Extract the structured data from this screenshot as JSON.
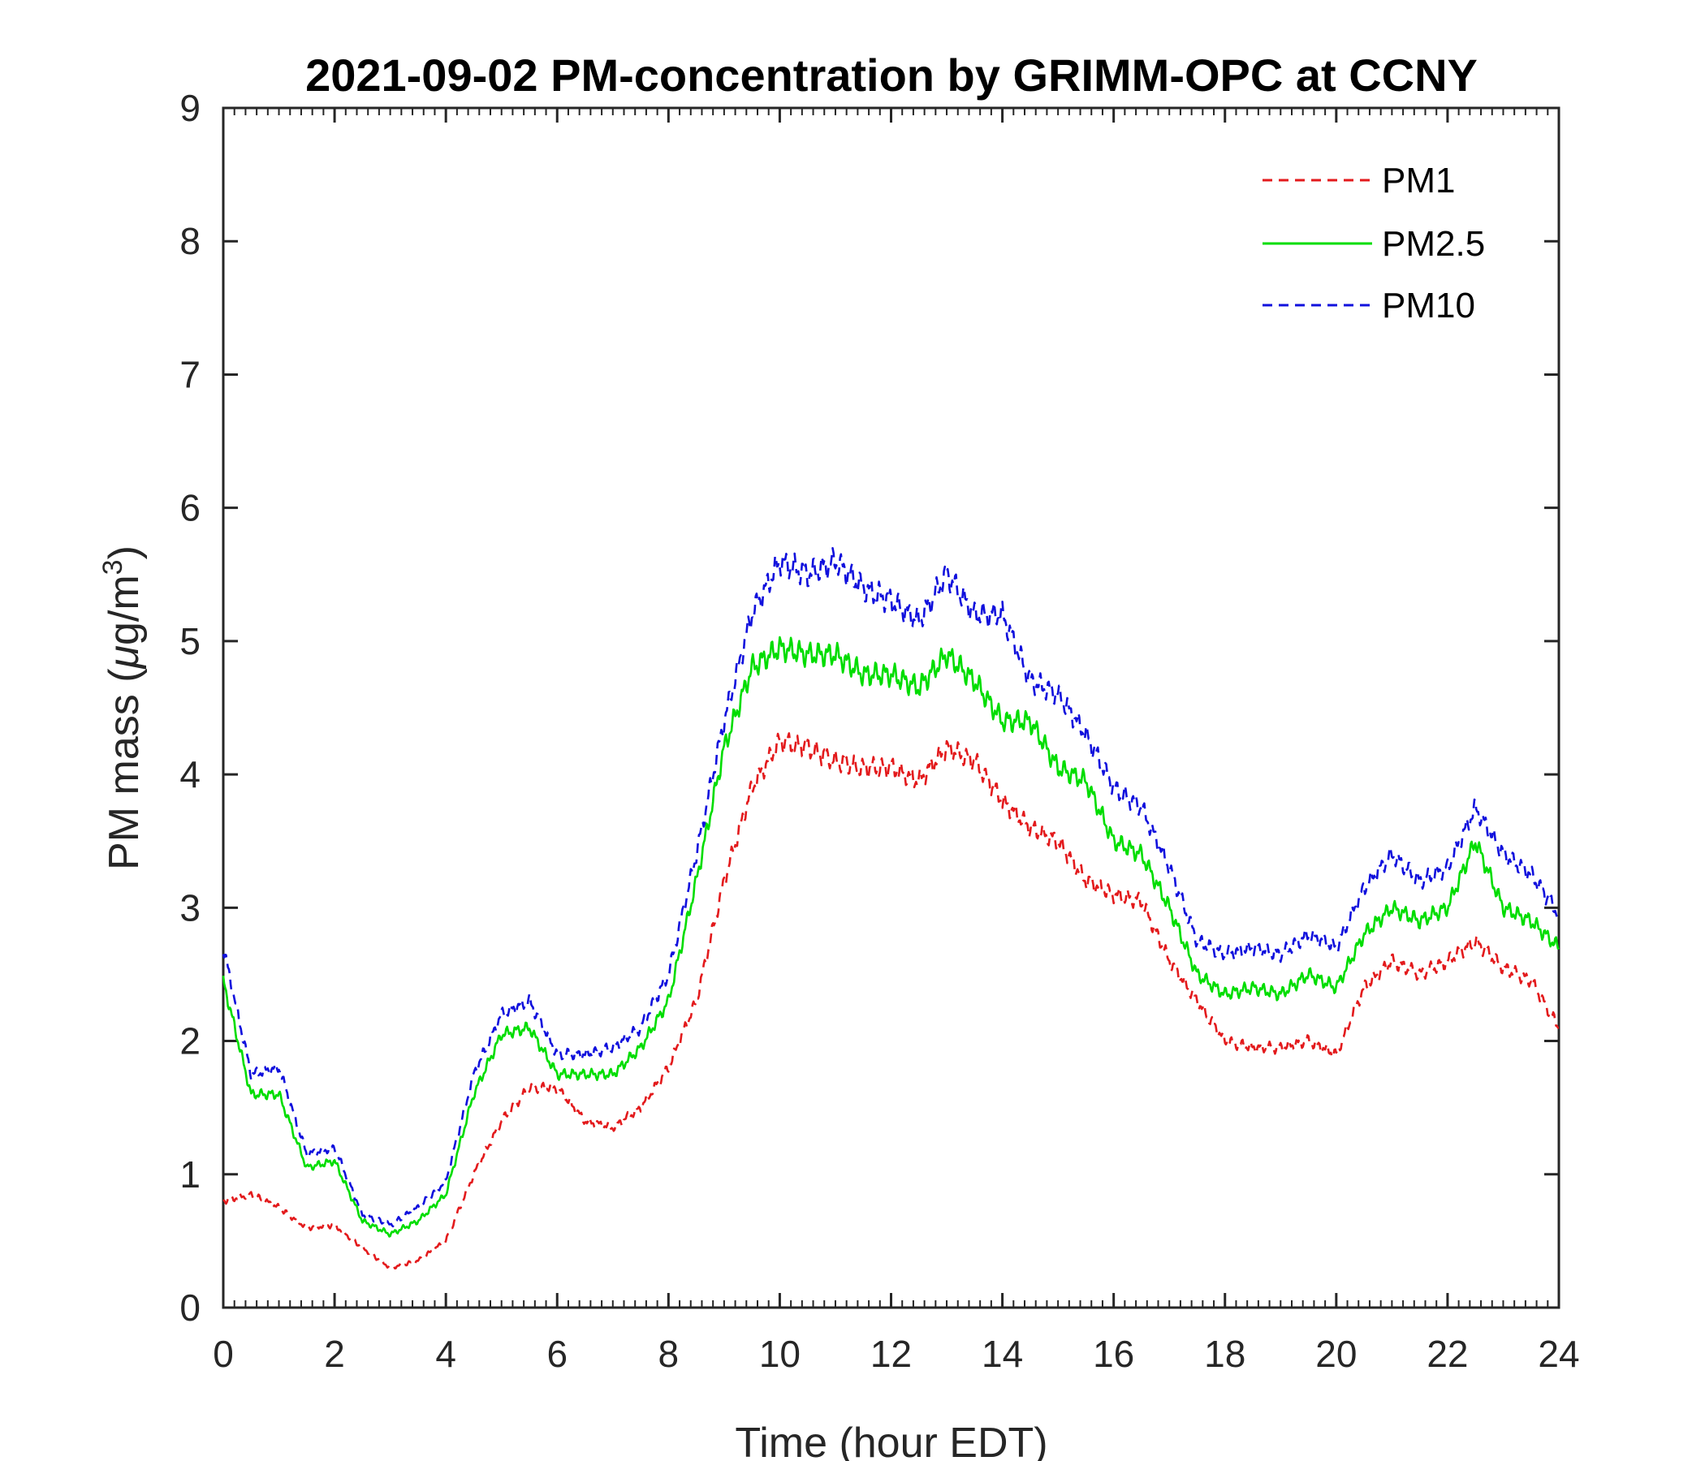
{
  "chart_data": {
    "type": "line",
    "title": "2021-09-02 PM-concentration by GRIMM-OPC at CCNY",
    "xlabel": "Time (hour EDT)",
    "ylabel_main": "PM mass (",
    "ylabel_mu": "μ",
    "ylabel_unit": "g/m",
    "ylabel_sup": "3",
    "ylabel_close": ")",
    "xlim": [
      0,
      24
    ],
    "ylim": [
      0,
      9
    ],
    "x_ticks": [
      "0",
      "2",
      "4",
      "6",
      "8",
      "10",
      "12",
      "14",
      "16",
      "18",
      "20",
      "22",
      "24"
    ],
    "y_ticks": [
      "0",
      "1",
      "2",
      "3",
      "4",
      "5",
      "6",
      "7",
      "8",
      "9"
    ],
    "grid": false,
    "legend_position": "top-right",
    "x": [
      0,
      0.5,
      1,
      1.5,
      2,
      2.5,
      3,
      3.5,
      4,
      4.5,
      5,
      5.5,
      6,
      6.5,
      7,
      7.5,
      8,
      8.5,
      9,
      9.5,
      10,
      10.5,
      11,
      11.5,
      12,
      12.5,
      13,
      13.5,
      14,
      14.5,
      15,
      15.5,
      16,
      16.5,
      17,
      17.5,
      18,
      18.5,
      19,
      19.5,
      20,
      20.5,
      21,
      21.5,
      22,
      22.5,
      23,
      23.5,
      24
    ],
    "series": [
      {
        "name": "PM1",
        "color": "#e31a1c",
        "dash": "dashed",
        "values": [
          0.8,
          0.85,
          0.75,
          0.6,
          0.62,
          0.45,
          0.3,
          0.35,
          0.5,
          1.0,
          1.4,
          1.65,
          1.65,
          1.4,
          1.35,
          1.5,
          1.8,
          2.3,
          3.2,
          3.9,
          4.25,
          4.2,
          4.1,
          4.05,
          4.05,
          3.95,
          4.2,
          4.1,
          3.8,
          3.6,
          3.5,
          3.2,
          3.1,
          3.05,
          2.6,
          2.3,
          2.0,
          1.95,
          1.95,
          2.0,
          1.9,
          2.4,
          2.6,
          2.5,
          2.6,
          2.75,
          2.55,
          2.45,
          2.1
        ]
      },
      {
        "name": "PM2.5",
        "color": "#00dd00",
        "dash": "solid",
        "values": [
          2.45,
          1.6,
          1.6,
          1.05,
          1.1,
          0.65,
          0.55,
          0.65,
          0.85,
          1.6,
          2.05,
          2.1,
          1.75,
          1.75,
          1.75,
          1.95,
          2.3,
          3.2,
          4.2,
          4.8,
          4.95,
          4.9,
          4.9,
          4.75,
          4.75,
          4.65,
          4.9,
          4.7,
          4.4,
          4.4,
          4.05,
          3.95,
          3.5,
          3.4,
          3.0,
          2.5,
          2.35,
          2.4,
          2.35,
          2.5,
          2.4,
          2.8,
          3.0,
          2.9,
          3.0,
          3.5,
          3.0,
          2.9,
          2.7
        ]
      },
      {
        "name": "PM10",
        "color": "#1010dd",
        "dash": "dashed",
        "values": [
          2.7,
          1.75,
          1.8,
          1.15,
          1.2,
          0.7,
          0.62,
          0.75,
          0.95,
          1.75,
          2.2,
          2.3,
          1.9,
          1.9,
          1.95,
          2.1,
          2.5,
          3.4,
          4.4,
          5.2,
          5.6,
          5.5,
          5.6,
          5.4,
          5.3,
          5.15,
          5.5,
          5.2,
          5.2,
          4.7,
          4.6,
          4.3,
          3.9,
          3.75,
          3.3,
          2.75,
          2.65,
          2.7,
          2.65,
          2.8,
          2.7,
          3.15,
          3.4,
          3.2,
          3.3,
          3.75,
          3.4,
          3.25,
          2.95
        ]
      }
    ]
  }
}
